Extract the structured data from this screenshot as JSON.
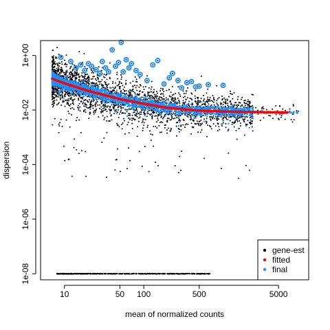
{
  "chart_data": {
    "type": "scatter",
    "title": "",
    "xlabel": "mean of normalized counts",
    "ylabel": "dispersion",
    "x_scale": "log",
    "y_scale": "log",
    "xlim": [
      5,
      12000
    ],
    "ylim": [
      6e-09,
      3.5
    ],
    "x_ticks": [
      10,
      50,
      100,
      500,
      5000
    ],
    "x_tick_labels": [
      "10",
      "50",
      "100",
      "500",
      "5000"
    ],
    "y_ticks": [
      1e-08,
      1e-06,
      0.0001,
      0.01,
      1
    ],
    "y_tick_labels": [
      "1e-08",
      "1e-06",
      "1e-04",
      "1e-02",
      "1e+00"
    ],
    "grid": false,
    "legend_position": "bottom-right",
    "legend": [
      {
        "label": "gene-est",
        "color": "#000000",
        "marker": "dot"
      },
      {
        "label": "fitted",
        "color": "#ff0000",
        "marker": "dot"
      },
      {
        "label": "final",
        "color": "#1e90ff",
        "marker": "dot"
      }
    ],
    "fitted_curve": {
      "name": "fitted",
      "color": "#ff0000",
      "x": [
        7,
        10,
        20,
        50,
        100,
        200,
        500,
        1000,
        2000,
        5000,
        6500
      ],
      "y": [
        0.14,
        0.095,
        0.05,
        0.025,
        0.017,
        0.012,
        0.0095,
        0.0088,
        0.0085,
        0.0082,
        0.0081
      ]
    },
    "outliers": {
      "name": "final outliers",
      "color": "#1e90ff",
      "x": [
        9,
        12,
        14,
        16,
        18,
        20,
        22,
        25,
        28,
        30,
        33,
        36,
        40,
        44,
        48,
        52,
        55,
        60,
        65,
        70,
        80,
        90,
        110,
        130,
        150,
        180,
        210,
        230,
        270,
        300,
        350,
        400,
        450,
        500,
        650,
        1000
      ],
      "y": [
        0.85,
        0.6,
        0.35,
        0.45,
        0.28,
        0.5,
        0.4,
        0.3,
        0.22,
        0.6,
        0.35,
        0.25,
        1.6,
        0.4,
        0.55,
        3.0,
        0.25,
        0.7,
        0.35,
        0.5,
        0.28,
        0.2,
        0.12,
        0.45,
        0.65,
        0.09,
        0.15,
        0.22,
        0.12,
        0.065,
        0.1,
        0.11,
        0.07,
        0.075,
        0.085,
        0.08
      ]
    },
    "gene_est_baseline": {
      "y": 1e-08,
      "x_range": [
        8,
        700
      ]
    }
  }
}
